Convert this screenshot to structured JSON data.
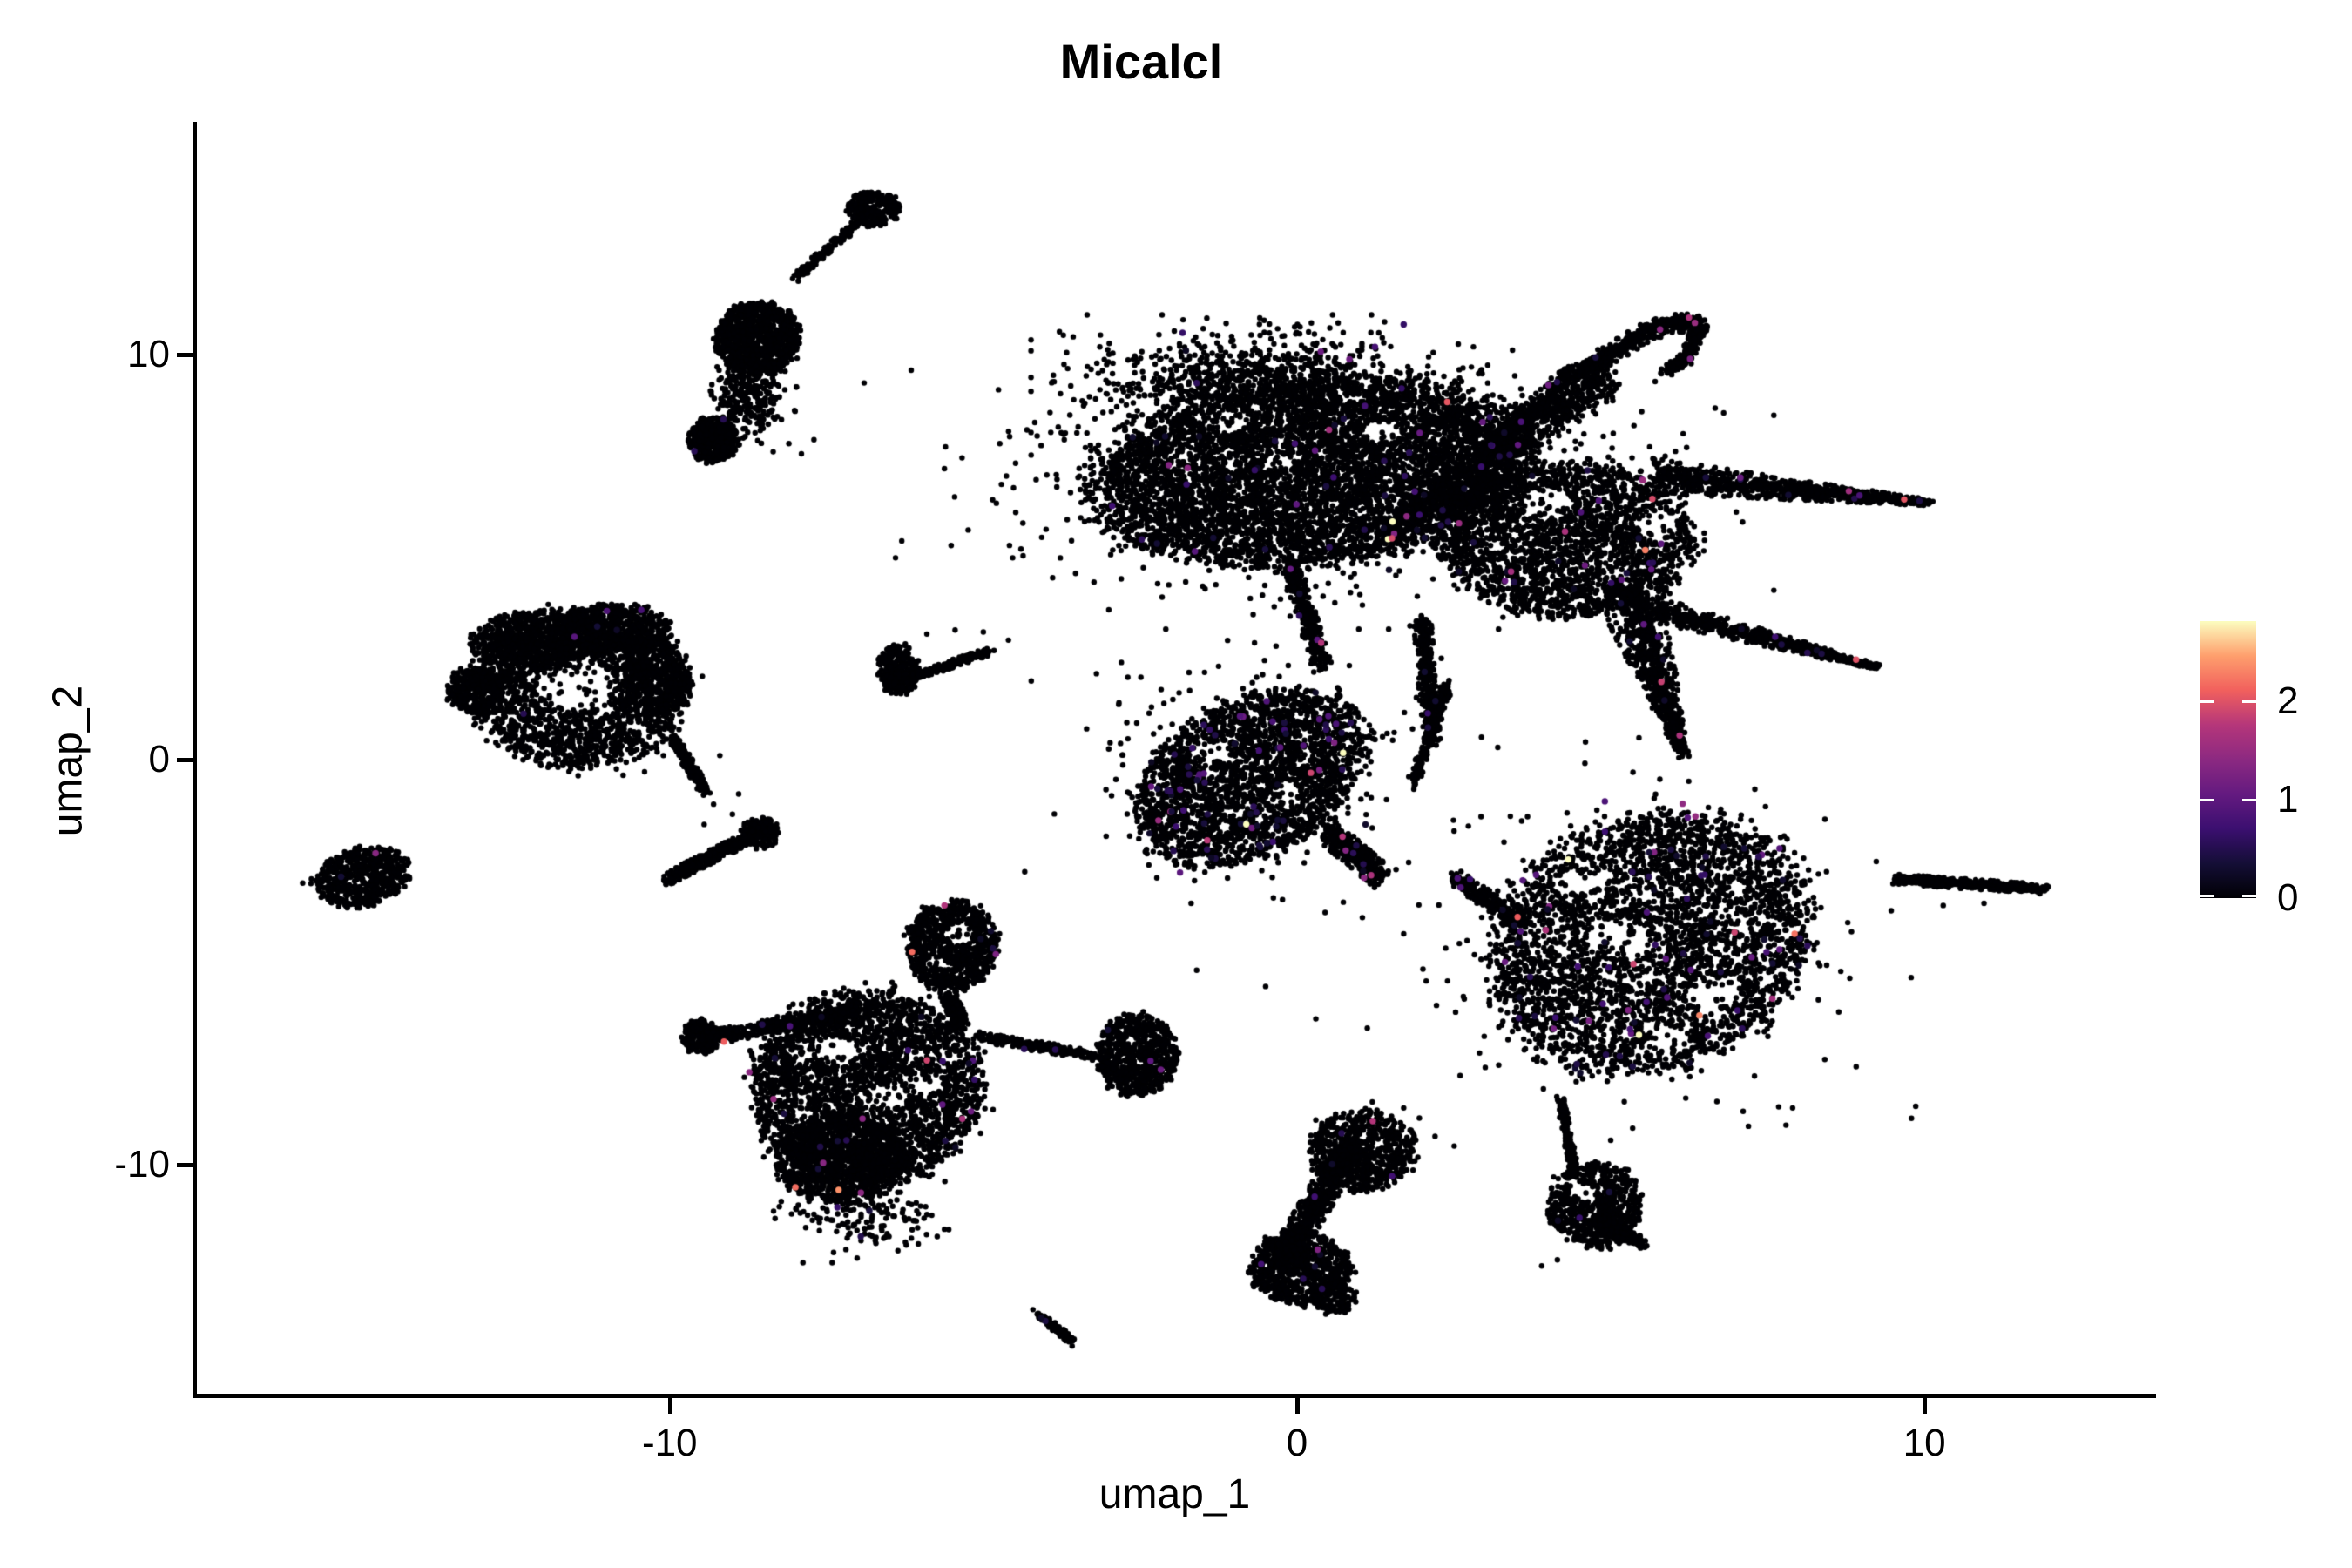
{
  "title": "Micalcl",
  "axes": {
    "x": {
      "label": "umap_1",
      "tick_labels": [
        "-10",
        "0",
        "10"
      ],
      "tick_values": [
        -10,
        0,
        10
      ]
    },
    "y": {
      "label": "umap_2",
      "tick_labels": [
        "10",
        "0",
        "-10"
      ],
      "tick_values": [
        10,
        0,
        -10
      ]
    }
  },
  "legend": {
    "tick_labels": [
      "2",
      "1",
      "0"
    ],
    "tick_values": [
      2,
      1,
      0
    ],
    "vmax": 2.81,
    "stops": [
      [
        0,
        "#000004"
      ],
      [
        0.125,
        "#140e36"
      ],
      [
        0.25,
        "#3b0f70"
      ],
      [
        0.375,
        "#641a80"
      ],
      [
        0.5,
        "#8c2981"
      ],
      [
        0.625,
        "#b5367a"
      ],
      [
        0.75,
        "#f1605d"
      ],
      [
        0.875,
        "#fe9f6d"
      ],
      [
        1,
        "#fcfdbf"
      ]
    ]
  },
  "chart_data": {
    "type": "scatter",
    "title": "Micalcl",
    "xlabel": "umap_1",
    "ylabel": "umap_2",
    "xlim": [
      -17.55,
      13.65
    ],
    "ylim": [
      -15.7,
      15.7
    ],
    "xticks": [
      -10,
      0,
      10
    ],
    "yticks": [
      -10,
      0,
      10
    ],
    "grid": false,
    "legend_position": "right",
    "colorbar": {
      "vmax": 2.81,
      "ticks": [
        0,
        1,
        2
      ],
      "colormap": "magma",
      "stops": [
        [
          0,
          "#000004"
        ],
        [
          0.125,
          "#140e36"
        ],
        [
          0.25,
          "#3b0f70"
        ],
        [
          0.375,
          "#641a80"
        ],
        [
          0.5,
          "#8c2981"
        ],
        [
          0.625,
          "#b5367a"
        ],
        [
          0.75,
          "#f1605d"
        ],
        [
          0.875,
          "#fe9f6d"
        ],
        [
          1,
          "#fcfdbf"
        ]
      ]
    },
    "point_color_default": "#000004",
    "point_radius_px": 3.2,
    "colored_fraction": 0.008,
    "seed": 42,
    "clusters": [
      {
        "name": "comet-tip",
        "type": "blob",
        "cx": -6.75,
        "cy": 13.6,
        "rx": 0.42,
        "ry": 0.45,
        "n": 260,
        "cf": 0.002
      },
      {
        "name": "comet-line",
        "type": "band",
        "x1": -7.0,
        "y1": 13.25,
        "x2": -7.95,
        "y2": 11.95,
        "w": 9,
        "n": 170,
        "cf": 0.002
      },
      {
        "name": "comet-mass",
        "type": "blob",
        "cx": -8.6,
        "cy": 10.4,
        "rx": 0.68,
        "ry": 0.9,
        "n": 950,
        "cf": 0.002
      },
      {
        "name": "comet-spray",
        "type": "blob",
        "cx": -8.75,
        "cy": 9.0,
        "rx": 0.55,
        "ry": 0.85,
        "n": 260,
        "dist": "gauss",
        "cf": 0.002
      },
      {
        "name": "comet-foot",
        "type": "blob",
        "cx": -9.3,
        "cy": 7.9,
        "rx": 0.4,
        "ry": 0.58,
        "n": 380,
        "cf": 0.002
      },
      {
        "name": "comet-dots",
        "type": "scatter",
        "points": [
          [
            -8.1,
            7.8
          ],
          [
            -7.7,
            7.9
          ],
          [
            -8.35,
            7.6
          ],
          [
            -7.9,
            7.55
          ],
          [
            -6.9,
            9.3
          ],
          [
            -8.0,
            8.6
          ]
        ]
      },
      {
        "name": "fan-main",
        "type": "blob",
        "cx": -11.45,
        "cy": 1.75,
        "rx": 1.75,
        "ry": 2.0,
        "n": 2200,
        "holes": [
          [
            -11.5,
            1.85,
            0.62
          ]
        ],
        "cf": 0.002
      },
      {
        "name": "fan-rim-left",
        "type": "blob",
        "cx": -12.15,
        "cy": 2.9,
        "rx": 1.0,
        "ry": 0.75,
        "n": 550,
        "cf": 0.002
      },
      {
        "name": "fan-rim-right",
        "type": "blob",
        "cx": -10.9,
        "cy": 3.25,
        "rx": 0.9,
        "ry": 0.62,
        "n": 500,
        "cf": 0.002
      },
      {
        "name": "fan-tip",
        "type": "blob",
        "cx": -13.1,
        "cy": 1.7,
        "rx": 0.45,
        "ry": 0.55,
        "n": 300,
        "cf": 0.002
      },
      {
        "name": "fan-right-lobe",
        "type": "blob",
        "cx": -10.2,
        "cy": 2.0,
        "rx": 0.55,
        "ry": 0.9,
        "n": 420,
        "cf": 0.002
      },
      {
        "name": "fan-tail",
        "type": "band",
        "x1": -9.95,
        "y1": 0.55,
        "x2": -9.45,
        "y2": -0.75,
        "w": 11,
        "n": 230,
        "cf": 0.002
      },
      {
        "name": "fan-streak",
        "type": "band",
        "x1": -10.05,
        "y1": -2.95,
        "x2": -8.45,
        "y2": -1.7,
        "w": 13,
        "n": 540,
        "cf": 0.002
      },
      {
        "name": "fan-streak-knot",
        "type": "blob",
        "cx": -8.55,
        "cy": -1.8,
        "rx": 0.3,
        "ry": 0.38,
        "n": 150,
        "cf": 0.002
      },
      {
        "name": "fan-dots",
        "type": "scatter",
        "points": [
          [
            -9.3,
            -1.1
          ],
          [
            -9.0,
            -1.35
          ],
          [
            -9.6,
            -0.2
          ],
          [
            -9.2,
            0.1
          ],
          [
            -8.9,
            -0.85
          ],
          [
            -9.45,
            -1.6
          ],
          [
            -10.4,
            -0.3
          ],
          [
            -10.1,
            0.1
          ]
        ]
      },
      {
        "name": "isle-left",
        "type": "blob",
        "cx": -14.9,
        "cy": -2.9,
        "rx": 0.78,
        "ry": 0.72,
        "n": 620,
        "angle": -12,
        "cf": 0.004
      },
      {
        "name": "isle-left-dot",
        "type": "scatter",
        "points": [
          [
            -15.85,
            -3.05
          ]
        ]
      },
      {
        "name": "swoosh-knot",
        "type": "blob",
        "cx": -6.35,
        "cy": 2.2,
        "rx": 0.33,
        "ry": 0.62,
        "n": 300,
        "cf": 0.003
      },
      {
        "name": "swoosh-line",
        "type": "band",
        "x1": -6.1,
        "y1": 2.05,
        "x2": -4.95,
        "y2": 2.65,
        "w": 8,
        "n": 190,
        "cf": 0.003
      },
      {
        "name": "swoosh-dots",
        "type": "scatter",
        "points": [
          [
            -5.9,
            3.1
          ],
          [
            -5.0,
            3.15
          ],
          [
            -5.45,
            3.2
          ],
          [
            -4.6,
            2.95
          ]
        ]
      },
      {
        "name": "dancer-head",
        "type": "blob",
        "cx": -5.5,
        "cy": -4.6,
        "rx": 0.72,
        "ry": 1.1,
        "n": 950,
        "cf": 0.006,
        "holes": [
          [
            -5.4,
            -4.3,
            0.24
          ],
          [
            -5.75,
            -5.0,
            0.18
          ]
        ]
      },
      {
        "name": "dancer-neck",
        "type": "band",
        "x1": -5.55,
        "y1": -5.85,
        "x2": -5.35,
        "y2": -6.55,
        "w": 16,
        "n": 220,
        "cf": 0.006
      },
      {
        "name": "dancer-body",
        "type": "blob",
        "cx": -6.85,
        "cy": -8.1,
        "rx": 1.85,
        "ry": 2.4,
        "n": 3200,
        "cf": 0.006,
        "holes": [
          [
            -7.35,
            -7.2,
            0.35
          ],
          [
            -6.5,
            -8.3,
            0.3
          ],
          [
            -7.8,
            -8.9,
            0.25
          ],
          [
            -5.9,
            -8.0,
            0.25
          ],
          [
            -6.9,
            -9.3,
            0.22
          ]
        ]
      },
      {
        "name": "dancer-hip",
        "type": "blob",
        "cx": -7.3,
        "cy": -9.85,
        "rx": 1.0,
        "ry": 1.1,
        "n": 1150,
        "cf": 0.006
      },
      {
        "name": "dancer-arm-left",
        "type": "band",
        "x1": -7.0,
        "y1": -6.2,
        "x2": -9.45,
        "y2": -6.9,
        "w": 15,
        "n": 430,
        "cf": 0.004
      },
      {
        "name": "dancer-hand-left",
        "type": "blob",
        "cx": -9.5,
        "cy": -6.85,
        "rx": 0.3,
        "ry": 0.42,
        "n": 160,
        "cf": 0.004
      },
      {
        "name": "dancer-arm-right",
        "type": "band",
        "x1": -5.05,
        "y1": -6.85,
        "x2": -3.25,
        "y2": -7.3,
        "w": 10,
        "n": 240,
        "cf": 0.004
      },
      {
        "name": "dancer-ball",
        "type": "blob",
        "cx": -2.55,
        "cy": -7.3,
        "rx": 0.65,
        "ry": 1.0,
        "n": 750,
        "cf": 0.006
      },
      {
        "name": "dancer-drips",
        "type": "blob",
        "cx": -6.8,
        "cy": -11.3,
        "rx": 1.3,
        "ry": 0.8,
        "n": 150,
        "dist": "gauss",
        "cf": 0.004
      },
      {
        "name": "drip-streak",
        "type": "band",
        "x1": -4.1,
        "y1": -13.7,
        "x2": -3.6,
        "y2": -14.35,
        "w": 8,
        "n": 130,
        "cf": 0.004
      },
      {
        "name": "bird-core",
        "type": "blob",
        "cx": 0.2,
        "cy": 7.1,
        "rx": 3.5,
        "ry": 2.3,
        "n": 5600,
        "angle": -6,
        "holes": [
          [
            -1.2,
            8.4,
            0.4
          ],
          [
            1.35,
            8.1,
            0.3
          ],
          [
            -0.3,
            7.3,
            0.25
          ]
        ]
      },
      {
        "name": "bird-core-right",
        "type": "blob",
        "cx": 4.3,
        "cy": 5.4,
        "rx": 2.0,
        "ry": 1.9,
        "n": 2400,
        "cf": 0.014,
        "holes": [
          [
            5.7,
            5.8,
            0.35
          ],
          [
            4.0,
            6.3,
            0.4
          ]
        ]
      },
      {
        "name": "bird-crown",
        "type": "blob",
        "cx": -0.6,
        "cy": 9.3,
        "rx": 2.6,
        "ry": 1.2,
        "n": 900,
        "dist": "gauss"
      },
      {
        "name": "bird-ridge",
        "type": "band",
        "x1": 1.4,
        "y1": 5.5,
        "x2": 5.0,
        "y2": 9.5,
        "w": 40,
        "n": 850
      },
      {
        "name": "bird-arc-1",
        "type": "band",
        "x1": 2.9,
        "y1": 7.5,
        "x2": 4.3,
        "y2": 9.4,
        "w": 22,
        "n": 320
      },
      {
        "name": "bird-arc-2",
        "type": "band",
        "x1": 4.3,
        "y1": 9.4,
        "x2": 5.8,
        "y2": 10.75,
        "w": 20,
        "n": 300
      },
      {
        "name": "bird-arc-3",
        "type": "band",
        "x1": 5.8,
        "y1": 10.75,
        "x2": 6.45,
        "y2": 10.8,
        "w": 18,
        "n": 140
      },
      {
        "name": "bird-curl-1",
        "type": "band",
        "x1": 6.45,
        "y1": 10.8,
        "x2": 6.2,
        "y2": 9.9,
        "w": 14,
        "n": 120
      },
      {
        "name": "bird-curl-2",
        "type": "band",
        "x1": 6.2,
        "y1": 9.9,
        "x2": 5.85,
        "y2": 9.55,
        "w": 12,
        "n": 80
      },
      {
        "name": "bird-spike-top",
        "type": "band",
        "x1": 5.7,
        "y1": 7.0,
        "x2": 10.05,
        "y2": 6.35,
        "w": 36,
        "w2": 6,
        "n": 850
      },
      {
        "name": "bird-spike-low",
        "type": "band",
        "x1": 5.1,
        "y1": 3.95,
        "x2": 9.2,
        "y2": 2.3,
        "w": 30,
        "w2": 6,
        "n": 650,
        "cf": 0.012
      },
      {
        "name": "bird-wedge",
        "type": "band",
        "x1": 5.4,
        "y1": 3.6,
        "x2": 6.15,
        "y2": 0.15,
        "w": 60,
        "w2": 10,
        "n": 700,
        "cf": 0.012
      },
      {
        "name": "bird-leg-1",
        "type": "band",
        "x1": 2.0,
        "y1": 3.4,
        "x2": 2.15,
        "y2": 0.4,
        "w": 18,
        "n": 330
      },
      {
        "name": "bird-leg-2",
        "type": "band",
        "x1": -0.1,
        "y1": 4.8,
        "x2": 0.4,
        "y2": 2.3,
        "w": 20,
        "n": 300
      },
      {
        "name": "bird-tail",
        "type": "band",
        "x1": 2.4,
        "y1": 1.85,
        "x2": 1.85,
        "y2": -0.55,
        "w": 12,
        "n": 200
      },
      {
        "name": "bird-halo",
        "type": "blob",
        "cx": 0.6,
        "cy": 7.0,
        "rx": 5.0,
        "ry": 2.7,
        "n": 1000,
        "dist": "gauss"
      },
      {
        "name": "knot-mid",
        "type": "blob",
        "cx": -0.75,
        "cy": -0.45,
        "rx": 1.95,
        "ry": 1.9,
        "angle": -28,
        "n": 2400,
        "cf": 0.028,
        "holes": [
          [
            -1.3,
            0.2,
            0.3
          ],
          [
            -0.2,
            -0.9,
            0.25
          ]
        ]
      },
      {
        "name": "knot-mid-tail",
        "type": "band",
        "x1": 0.5,
        "y1": -1.8,
        "x2": 1.35,
        "y2": -2.9,
        "w": 26,
        "n": 380,
        "cf": 0.02
      },
      {
        "name": "knot-mid-halo",
        "type": "blob",
        "cx": -0.7,
        "cy": -0.4,
        "rx": 2.6,
        "ry": 2.5,
        "n": 350,
        "dist": "gauss",
        "cf": 0.01
      },
      {
        "name": "wheel",
        "type": "blob",
        "cx": 5.6,
        "cy": -4.55,
        "rx": 2.6,
        "ry": 3.1,
        "angle": -18,
        "n": 3500,
        "cf": 0.022,
        "holes": [
          [
            5.1,
            -4.4,
            0.5
          ],
          [
            6.6,
            -5.8,
            0.4
          ],
          [
            4.6,
            -2.9,
            0.35
          ],
          [
            5.9,
            -6.9,
            0.3
          ]
        ]
      },
      {
        "name": "wheel-spur",
        "type": "band",
        "x1": 2.5,
        "y1": -2.9,
        "x2": 3.6,
        "y2": -4.05,
        "w": 18,
        "n": 220,
        "cf": 0.01
      },
      {
        "name": "wheel-halo",
        "type": "blob",
        "cx": 5.6,
        "cy": -4.5,
        "rx": 3.2,
        "ry": 3.6,
        "n": 380,
        "dist": "gauss",
        "cf": 0.025
      },
      {
        "name": "dash-right",
        "type": "band",
        "x1": 9.55,
        "y1": -2.95,
        "x2": 11.9,
        "y2": -3.2,
        "w": 10,
        "n": 450,
        "cf": 0.002
      },
      {
        "name": "dash-right-dots",
        "type": "scatter",
        "points": [
          [
            10.3,
            -3.6
          ],
          [
            10.95,
            -3.55
          ]
        ]
      },
      {
        "name": "boot-top",
        "type": "blob",
        "cx": 1.05,
        "cy": -9.65,
        "rx": 0.85,
        "ry": 1.0,
        "n": 620,
        "cf": 0.004
      },
      {
        "name": "boot-shaft",
        "type": "band",
        "x1": 0.95,
        "y1": -9.3,
        "x2": -0.25,
        "y2": -12.4,
        "w": 30,
        "n": 640,
        "cf": 0.004
      },
      {
        "name": "boot-foot",
        "type": "blob",
        "cx": 0.05,
        "cy": -12.55,
        "rx": 0.8,
        "ry": 0.9,
        "n": 780,
        "cf": 0.004
      },
      {
        "name": "boot-toe",
        "type": "blob",
        "cx": 0.6,
        "cy": -13.3,
        "rx": 0.35,
        "ry": 0.4,
        "n": 140,
        "cf": 0.004
      },
      {
        "name": "boot-dots",
        "type": "scatter",
        "points": [
          [
            1.7,
            -8.6
          ],
          [
            1.95,
            -8.85
          ],
          [
            0.3,
            -8.9
          ],
          [
            1.2,
            -8.45
          ],
          [
            2.2,
            -9.3
          ]
        ]
      },
      {
        "name": "anchor-spur",
        "type": "band",
        "x1": 4.2,
        "y1": -8.4,
        "x2": 4.4,
        "y2": -10.0,
        "w": 9,
        "n": 150,
        "cf": 0.004
      },
      {
        "name": "anchor-main",
        "type": "blob",
        "cx": 4.75,
        "cy": -11.0,
        "rx": 0.75,
        "ry": 1.05,
        "n": 720,
        "cf": 0.004,
        "holes": [
          [
            4.55,
            -10.7,
            0.22
          ]
        ]
      },
      {
        "name": "anchor-point",
        "type": "band",
        "x1": 4.8,
        "y1": -11.3,
        "x2": 5.5,
        "y2": -11.95,
        "w": 26,
        "w2": 8,
        "n": 260,
        "cf": 0.004
      },
      {
        "name": "anchor-dots",
        "type": "scatter",
        "points": [
          [
            3.9,
            -12.5
          ],
          [
            4.15,
            -12.35
          ],
          [
            5.0,
            -9.4
          ],
          [
            5.35,
            -9.1
          ],
          [
            4.45,
            -7.95
          ]
        ]
      },
      {
        "name": "noise",
        "type": "scatter",
        "points": [
          [
            -3.0,
            3.7
          ],
          [
            -4.4,
            5.2
          ],
          [
            -2.8,
            2.4
          ],
          [
            -6.3,
            5.4
          ],
          [
            3.0,
            -7.6
          ],
          [
            2.6,
            -7.8
          ],
          [
            7.9,
            -8.6
          ],
          [
            1.8,
            3.3
          ],
          [
            2.3,
            2.5
          ],
          [
            2.0,
            1.1
          ],
          [
            1.7,
            -4.3
          ],
          [
            3.4,
            -1.4
          ],
          [
            3.2,
            0.3
          ],
          [
            0.3,
            -6.4
          ],
          [
            -0.5,
            -5.6
          ],
          [
            -1.6,
            -5.2
          ]
        ]
      }
    ]
  }
}
